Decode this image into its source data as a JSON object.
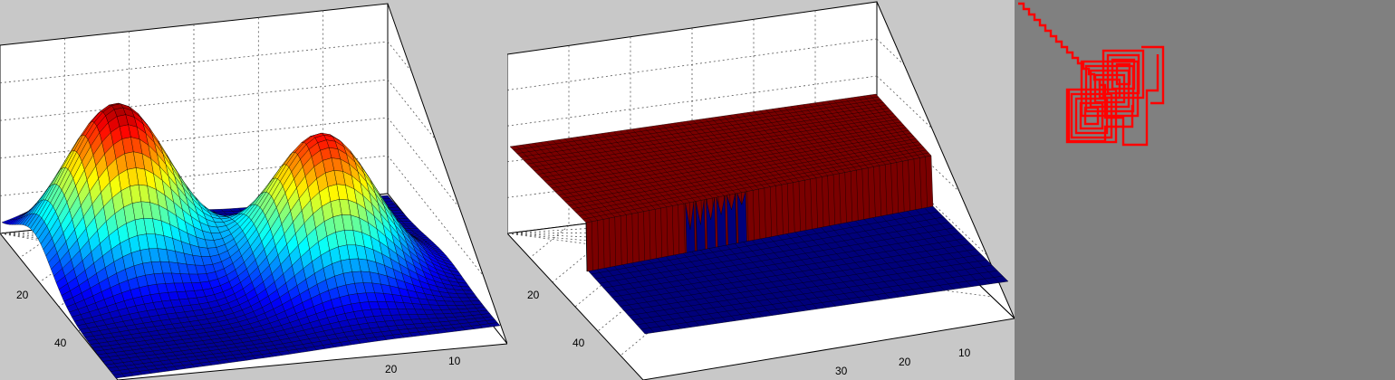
{
  "chart_data": [
    {
      "type": "surface",
      "description_free": true,
      "colormap": "jet",
      "x_tick_labels": [
        "20",
        "40"
      ],
      "y_tick_labels": [
        "20",
        "10"
      ],
      "grid": true,
      "peaks": [
        {
          "u": 0.22,
          "v": 0.28,
          "height": 1.0
        },
        {
          "u": 0.68,
          "v": 0.52,
          "height": 0.9
        }
      ]
    },
    {
      "type": "surface",
      "colors": {
        "high": "#7a0000",
        "low": "#00007a"
      },
      "x_tick_labels": [
        "20",
        "40"
      ],
      "y_tick_labels": [
        "30",
        "20",
        "10"
      ],
      "grid": true,
      "levels": {
        "high": 1,
        "low": 0
      }
    },
    {
      "type": "path",
      "color": "#ff0000",
      "background": "#808080"
    }
  ]
}
